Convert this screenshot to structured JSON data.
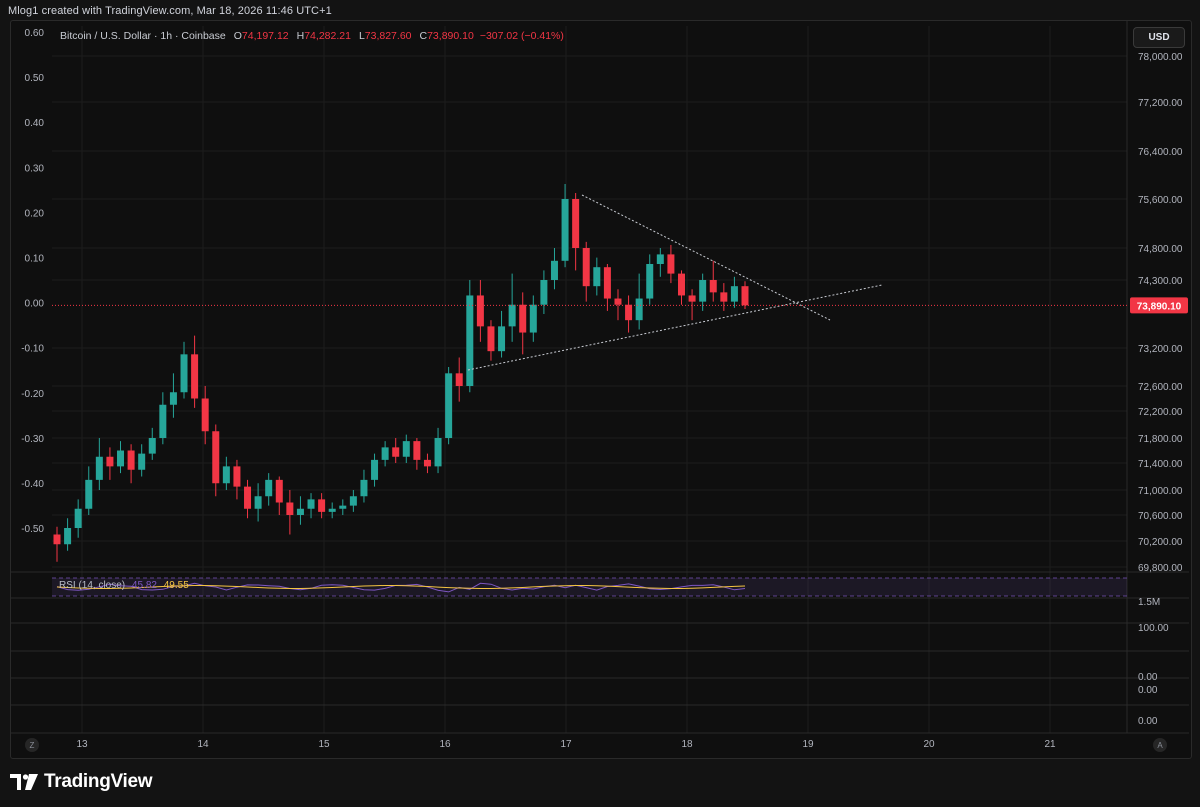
{
  "header": {
    "credit": "Mlog1 created with TradingView.com, Mar 18, 2026 11:46 UTC+1"
  },
  "legend": {
    "symbol": "Bitcoin / U.S. Dollar · 1h · Coinbase",
    "o_label": "O",
    "o_value": "74,197.12",
    "h_label": "H",
    "h_value": "74,282.21",
    "l_label": "L",
    "l_value": "73,827.60",
    "c_label": "C",
    "c_value": "73,890.10",
    "change": "−307.02 (−0.41%)"
  },
  "currency_button": "USD",
  "rsi": {
    "label": "RSI (14, close)",
    "value_a": "45.82",
    "value_b": "49.55"
  },
  "footer": {
    "brand": "TradingView"
  },
  "buttons": {
    "left_corner": "Z",
    "right_corner": "A"
  },
  "colors": {
    "up": "#26a69a",
    "down": "#f23645",
    "last_price_tag": "#f23645",
    "rsi_line": "#7e57c2",
    "rsi_ma": "#f5c542"
  },
  "chart_data": {
    "type": "candlestick",
    "symbol": "Bitcoin / U.S. Dollar",
    "interval": "1h",
    "exchange": "Coinbase",
    "last_price": 73890.1,
    "last_price_label": "73,890.10",
    "right_axis_ticks": [
      "78,000.00",
      "77,200.00",
      "76,400.00",
      "75,600.00",
      "74,800.00",
      "74,300.00",
      "73,200.00",
      "72,600.00",
      "72,200.00",
      "71,800.00",
      "71,400.00",
      "71,000.00",
      "70,600.00",
      "70,200.00",
      "69,800.00"
    ],
    "right_axis_values": [
      78000,
      77200,
      76400,
      75600,
      74800,
      74300,
      73200,
      72600,
      72200,
      71800,
      71400,
      71000,
      70600,
      70200,
      69800
    ],
    "left_axis_ticks": [
      "0.60",
      "0.50",
      "0.40",
      "0.30",
      "0.20",
      "0.10",
      "0.00",
      "-0.10",
      "-0.20",
      "-0.30",
      "-0.40",
      "-0.50"
    ],
    "left_axis_values": [
      0.6,
      0.5,
      0.4,
      0.3,
      0.2,
      0.1,
      0.0,
      -0.1,
      -0.2,
      -0.3,
      -0.4,
      -0.5
    ],
    "x_ticks": [
      "13",
      "14",
      "15",
      "16",
      "17",
      "18",
      "19",
      "20",
      "21"
    ],
    "lower_pane_labels": [
      "1.5M",
      "100.00",
      "0.00",
      "0.00",
      "0.00"
    ],
    "candles": [
      [
        0.0,
        70300,
        70150,
        70420,
        69880
      ],
      [
        0.25,
        70150,
        70400,
        70550,
        70050
      ],
      [
        0.5,
        70400,
        70700,
        70850,
        70250
      ],
      [
        0.75,
        70700,
        71150,
        71350,
        70600
      ],
      [
        1.0,
        71150,
        71500,
        71800,
        71000
      ],
      [
        1.25,
        71500,
        71350,
        71650,
        71150
      ],
      [
        1.5,
        71350,
        71600,
        71750,
        71250
      ],
      [
        1.75,
        71600,
        71300,
        71700,
        71100
      ],
      [
        2.0,
        71300,
        71550,
        71700,
        71200
      ],
      [
        2.25,
        71550,
        71800,
        71950,
        71450
      ],
      [
        2.5,
        71800,
        72300,
        72500,
        71700
      ],
      [
        2.75,
        72300,
        72500,
        72800,
        72100
      ],
      [
        3.0,
        72500,
        73100,
        73300,
        72400
      ],
      [
        3.25,
        73100,
        72400,
        73400,
        72250
      ],
      [
        3.5,
        72400,
        71900,
        72600,
        71700
      ],
      [
        3.75,
        71900,
        71100,
        72000,
        70900
      ],
      [
        4.0,
        71100,
        71350,
        71500,
        71000
      ],
      [
        4.25,
        71350,
        71050,
        71450,
        70850
      ],
      [
        4.5,
        71050,
        70700,
        71150,
        70550
      ],
      [
        4.75,
        70700,
        70900,
        71100,
        70500
      ],
      [
        5.0,
        70900,
        71150,
        71250,
        70750
      ],
      [
        5.25,
        71150,
        70800,
        71200,
        70600
      ],
      [
        5.5,
        70800,
        70600,
        71000,
        70300
      ],
      [
        5.75,
        70600,
        70700,
        70900,
        70450
      ],
      [
        6.0,
        70700,
        70850,
        70950,
        70550
      ],
      [
        6.25,
        70850,
        70650,
        70950,
        70550
      ],
      [
        6.5,
        70650,
        70700,
        70800,
        70550
      ],
      [
        6.75,
        70700,
        70750,
        70850,
        70600
      ],
      [
        7.0,
        70750,
        70900,
        71000,
        70650
      ],
      [
        7.25,
        70900,
        71150,
        71300,
        70800
      ],
      [
        7.5,
        71150,
        71450,
        71550,
        71050
      ],
      [
        7.75,
        71450,
        71650,
        71750,
        71350
      ],
      [
        8.0,
        71650,
        71500,
        71800,
        71400
      ],
      [
        8.25,
        71500,
        71750,
        71850,
        71400
      ],
      [
        8.5,
        71750,
        71450,
        71800,
        71300
      ],
      [
        8.75,
        71450,
        71350,
        71550,
        71250
      ],
      [
        9.0,
        71350,
        71800,
        71950,
        71250
      ],
      [
        9.25,
        71800,
        72800,
        72900,
        71700
      ],
      [
        9.5,
        72800,
        72600,
        73050,
        72350
      ],
      [
        9.75,
        72600,
        74050,
        74300,
        72500
      ],
      [
        10.0,
        74050,
        73550,
        74300,
        73300
      ],
      [
        10.25,
        73550,
        73150,
        73650,
        73000
      ],
      [
        10.5,
        73150,
        73550,
        73800,
        73050
      ],
      [
        10.75,
        73550,
        73900,
        74400,
        73300
      ],
      [
        11.0,
        73900,
        73450,
        74100,
        73100
      ],
      [
        11.25,
        73450,
        73900,
        74050,
        73300
      ],
      [
        11.5,
        73900,
        74300,
        74450,
        73750
      ],
      [
        11.75,
        74300,
        74600,
        74800,
        74150
      ],
      [
        12.0,
        74600,
        75600,
        75850,
        74500
      ],
      [
        12.25,
        75600,
        74800,
        75700,
        74450
      ],
      [
        12.5,
        74800,
        74200,
        74900,
        73950
      ],
      [
        12.75,
        74200,
        74500,
        74650,
        74050
      ],
      [
        13.0,
        74500,
        74000,
        74550,
        73800
      ],
      [
        13.25,
        74000,
        73900,
        74150,
        73650
      ],
      [
        13.5,
        73900,
        73650,
        74050,
        73450
      ],
      [
        13.75,
        73650,
        74000,
        74400,
        73500
      ],
      [
        14.0,
        74000,
        74550,
        74700,
        73900
      ],
      [
        14.25,
        74550,
        74700,
        74800,
        74350
      ],
      [
        14.5,
        74700,
        74400,
        74850,
        74250
      ],
      [
        14.75,
        74400,
        74050,
        74450,
        73900
      ],
      [
        15.0,
        74050,
        73950,
        74150,
        73650
      ],
      [
        15.25,
        73950,
        74300,
        74400,
        73800
      ],
      [
        15.5,
        74300,
        74100,
        74600,
        73950
      ],
      [
        15.75,
        74100,
        73950,
        74250,
        73800
      ],
      [
        16.0,
        73950,
        74200,
        74350,
        73850
      ],
      [
        16.25,
        74200,
        73890,
        74280,
        73830
      ]
    ]
  }
}
